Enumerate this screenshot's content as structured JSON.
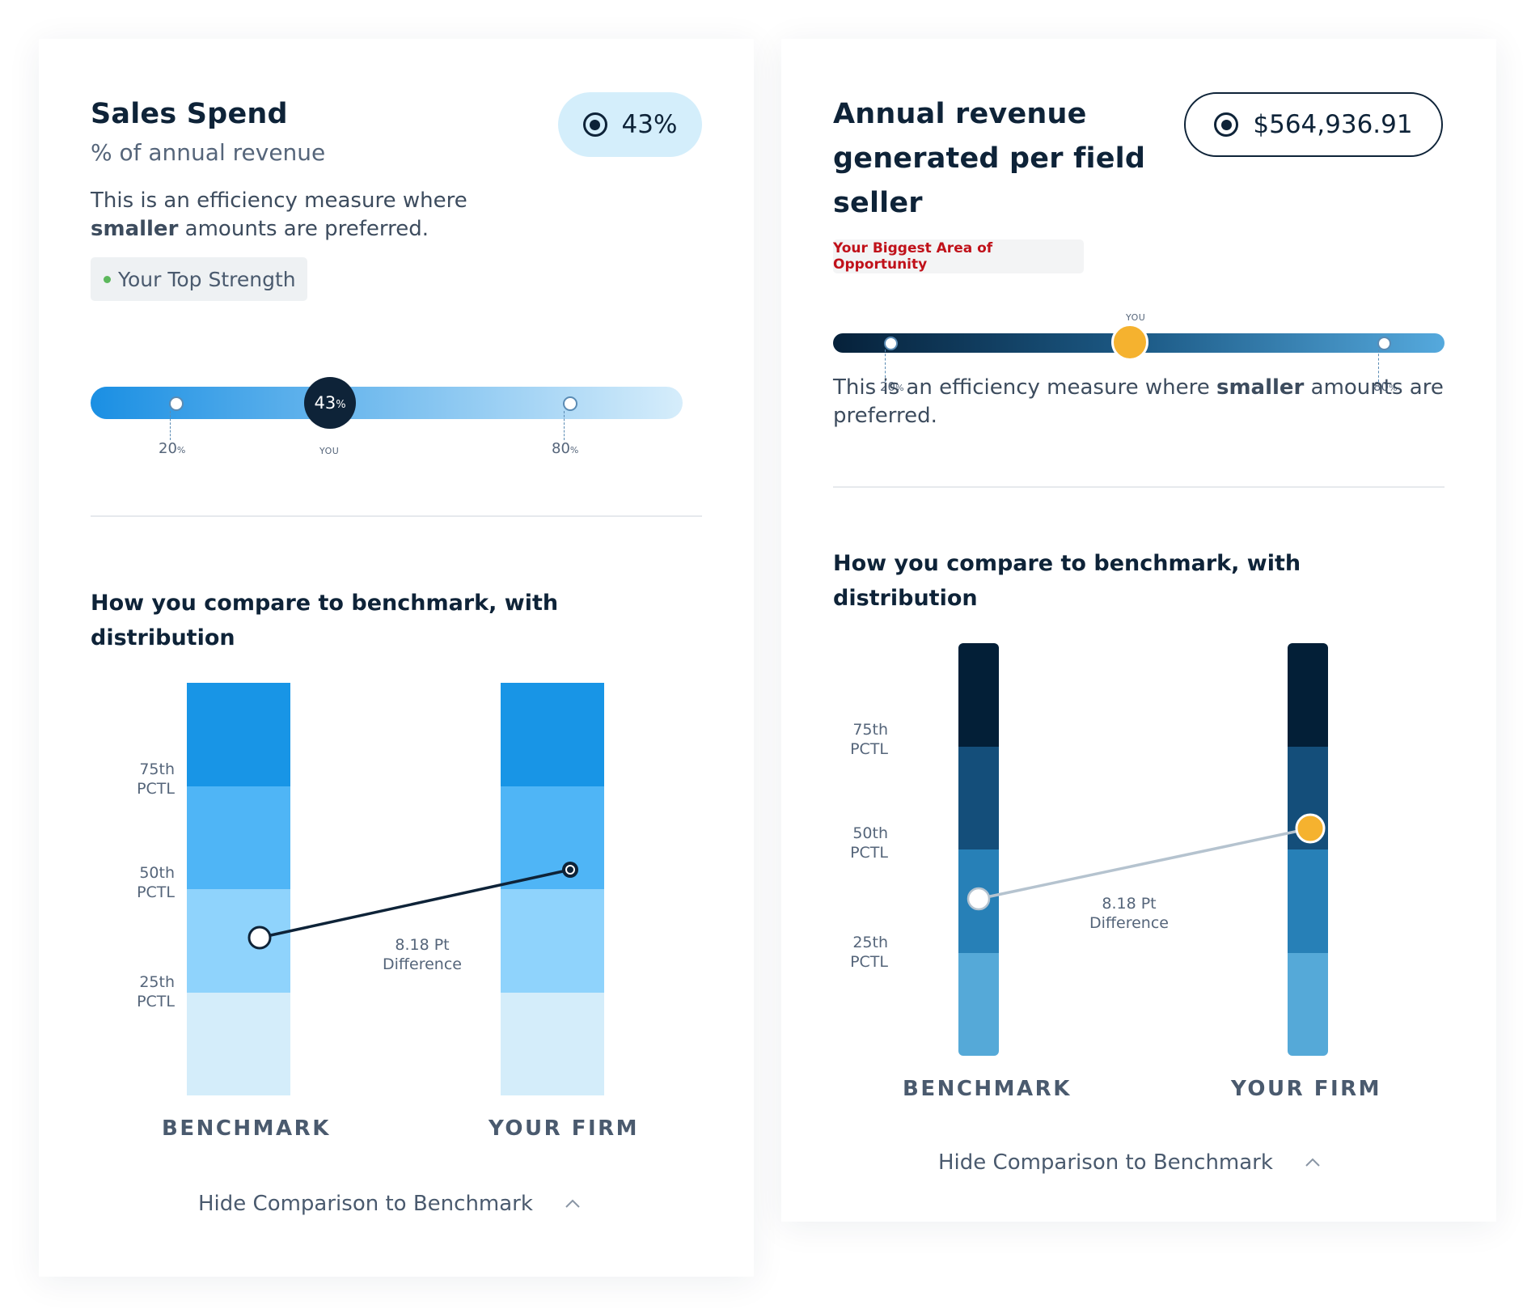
{
  "card1": {
    "title": "Sales Spend",
    "subtitle": "% of annual revenue",
    "desc_prefix": "This is an efficiency measure where",
    "desc_bold": "smaller",
    "desc_suffix": "amounts are preferred.",
    "badge_value": "43%",
    "strength_label": "Your Top Strength",
    "colors": {
      "bar_start": "#1a8fe3",
      "bar_end": "#d6edfb",
      "badge_bg": "#d4eefb",
      "strength_dot": "#5cb85c",
      "chip_bg": "#eef1f3"
    },
    "slider": {
      "you_value": "43",
      "you_unit": "%",
      "you_label": "YOU",
      "ticks": [
        {
          "value": "20",
          "unit": "%"
        },
        {
          "value": "80",
          "unit": "%"
        }
      ]
    },
    "compare_heading": "How you compare to benchmark, with distribution",
    "pctl": [
      {
        "line1": "75th",
        "line2": "PCTL"
      },
      {
        "line1": "50th",
        "line2": "PCTL"
      },
      {
        "line1": "25th",
        "line2": "PCTL"
      }
    ],
    "segment_colors": [
      "#1895e6",
      "#4fb5f6",
      "#8fd3fc",
      "#d4edfa"
    ],
    "diff_line1": "8.18 Pt",
    "diff_line2": "Difference",
    "benchmark_label": "BENCHMARK",
    "firm_label": "YOUR FIRM",
    "toggle_label": "Hide Comparison to Benchmark"
  },
  "card2": {
    "title_line1": "Annual revenue",
    "title_line2": "generated per field",
    "title_line3": "seller",
    "badge_value": "$564,936.91",
    "opportunity_label": "Your Biggest Area of Opportunity",
    "colors": {
      "bar_start": "#06213a",
      "bar_mid": "#1c5a86",
      "bar_end": "#55a9dd",
      "marker": "#f5b22f",
      "opportunity_text": "#c0111a",
      "chip_bg": "#f3f4f5"
    },
    "slider": {
      "you_label": "YOU",
      "ticks": [
        {
          "value": "20",
          "unit": "%"
        },
        {
          "value": "80",
          "unit": "%"
        }
      ]
    },
    "desc_prefix": "This is an efficiency measure where",
    "desc_bold": "smaller",
    "desc_suffix": "amounts are preferred.",
    "compare_heading": "How you compare to benchmark, with distribution",
    "pctl": [
      {
        "line1": "75th",
        "line2": "PCTL"
      },
      {
        "line1": "50th",
        "line2": "PCTL"
      },
      {
        "line1": "25th",
        "line2": "PCTL"
      }
    ],
    "segment_colors": [
      "#031f37",
      "#144e7a",
      "#2780b7",
      "#55a9d8"
    ],
    "diff_line1": "8.18 Pt",
    "diff_line2": "Difference",
    "benchmark_label": "BENCHMARK",
    "firm_label": "YOUR FIRM",
    "toggle_label": "Hide Comparison to Benchmark"
  }
}
